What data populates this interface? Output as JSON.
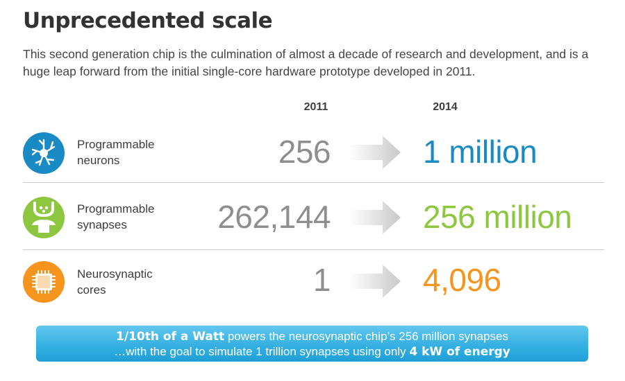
{
  "title": "Unprecedented scale",
  "subtitle": "This second generation chip is the culmination of almost a decade of research and development, and is a huge leap forward from the initial single-core hardware prototype developed in 2011.",
  "columns": {
    "left": "2011",
    "right": "2014"
  },
  "rows": [
    {
      "label_line1": "Programmable",
      "label_line2": "neurons",
      "value_2011": "256",
      "value_2014": "1 million",
      "color": "#1a8ac4",
      "icon": "neuron-icon"
    },
    {
      "label_line1": "Programmable",
      "label_line2": "synapses",
      "value_2011": "262,144",
      "value_2014": "256 million",
      "color": "#8dc63f",
      "icon": "synapse-icon"
    },
    {
      "label_line1": "Neurosynaptic",
      "label_line2": "cores",
      "value_2011": "1",
      "value_2014": "4,096",
      "color": "#f7941d",
      "icon": "chip-icon"
    }
  ],
  "arrow_icon": "right-arrow-icon",
  "banner": {
    "line1_bold": "1/10th of a Watt",
    "line1_rest": " powers the neurosynaptic chip’s 256 million synapses",
    "line2_rest": "…with the goal to simulate 1 trillion synapses using only ",
    "line2_bold": "4 kW of energy",
    "color": "#36b0e2"
  }
}
